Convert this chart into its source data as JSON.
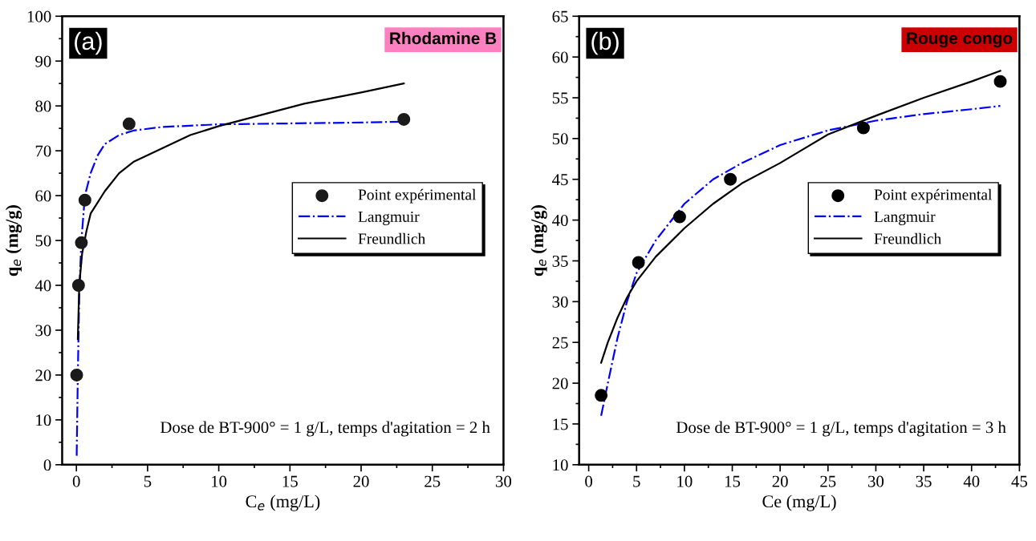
{
  "chart_data": [
    {
      "type": "scatter",
      "xlabel": "C$_{e}$ (mg/L)",
      "ylabel": "q$_{e}$ (mg/g)",
      "xlim": [
        -1,
        30
      ],
      "ylim": [
        0,
        100
      ],
      "xticks": [
        0,
        5,
        10,
        15,
        20,
        25,
        30
      ],
      "yticks": [
        0,
        10,
        20,
        30,
        40,
        50,
        60,
        70,
        80,
        90,
        100
      ],
      "legend": "right",
      "grid": false,
      "annotations": [
        "(a)",
        "Rhodamine B",
        "Dose de BT-900° = 1 g/L, temps d'agitation = 2 h"
      ],
      "series": [
        {
          "name": "Point expérimental",
          "marker": "circle",
          "color": "#1a1a1a",
          "x": [
            0.02,
            0.15,
            0.35,
            0.6,
            3.7,
            23
          ],
          "values": [
            20,
            40,
            49.5,
            59,
            76,
            77
          ]
        },
        {
          "name": "Langmuir",
          "type": "line",
          "line_style": "dashdot",
          "marker": "none",
          "color": "#0000ff",
          "x": [
            0.02,
            0.1,
            0.2,
            0.35,
            0.6,
            1,
            1.5,
            2,
            3,
            4,
            6,
            10,
            15,
            20,
            23
          ],
          "values": [
            2,
            20,
            38,
            50,
            60,
            65,
            69,
            71.5,
            73.5,
            74.5,
            75.3,
            75.9,
            76.1,
            76.3,
            76.5
          ]
        },
        {
          "name": "Freundlich",
          "type": "line",
          "line_style": "solid",
          "marker": "none",
          "color": "#000000",
          "x": [
            0.1,
            0.2,
            0.4,
            0.7,
            1,
            2,
            3,
            4,
            6,
            8,
            10,
            13,
            16,
            20,
            23
          ],
          "values": [
            28,
            40,
            47,
            52,
            56,
            61,
            65,
            67.5,
            70.5,
            73.5,
            75.5,
            78,
            80.5,
            83,
            85
          ]
        }
      ]
    },
    {
      "type": "scatter",
      "xlabel": "Ce (mg/L)",
      "ylabel": "q$_{e}$ (mg/g)",
      "xlim": [
        -1,
        45
      ],
      "ylim": [
        10,
        65
      ],
      "xticks": [
        0,
        5,
        10,
        15,
        20,
        25,
        30,
        35,
        40,
        45
      ],
      "yticks": [
        10,
        15,
        20,
        25,
        30,
        35,
        40,
        45,
        50,
        55,
        60,
        65
      ],
      "legend": "right",
      "grid": false,
      "annotations": [
        "(b)",
        "Rouge congo",
        "Dose de BT-900° = 1 g/L, temps d'agitation = 3 h"
      ],
      "series": [
        {
          "name": "Point expérimental",
          "marker": "circle",
          "color": "#000000",
          "x": [
            1.3,
            5.2,
            9.5,
            14.8,
            28.7,
            43
          ],
          "values": [
            18.5,
            34.8,
            40.4,
            45,
            51.3,
            57
          ]
        },
        {
          "name": "Langmuir",
          "type": "line",
          "line_style": "dashdot",
          "marker": "none",
          "color": "#0000ff",
          "x": [
            1.3,
            2,
            3,
            4,
            5,
            7,
            10,
            13,
            16,
            20,
            25,
            30,
            35,
            40,
            43
          ],
          "values": [
            16,
            20,
            25.5,
            30,
            33.5,
            37.5,
            42,
            45,
            47,
            49.2,
            51,
            52.2,
            53,
            53.6,
            54
          ]
        },
        {
          "name": "Freundlich",
          "type": "line",
          "line_style": "solid",
          "marker": "none",
          "color": "#000000",
          "x": [
            1.3,
            2,
            3,
            4,
            5,
            7,
            10,
            13,
            16,
            20,
            25,
            30,
            35,
            40,
            43
          ],
          "values": [
            22.5,
            25,
            28,
            30.5,
            32.5,
            35.5,
            39,
            42,
            44.5,
            47,
            50.5,
            52.8,
            55,
            57,
            58.3
          ]
        }
      ]
    }
  ]
}
